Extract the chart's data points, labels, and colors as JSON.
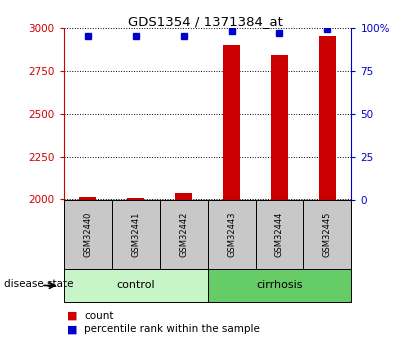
{
  "title": "GDS1354 / 1371384_at",
  "samples": [
    "GSM32440",
    "GSM32441",
    "GSM32442",
    "GSM32443",
    "GSM32444",
    "GSM32445"
  ],
  "count_values": [
    2012,
    2005,
    2035,
    2905,
    2845,
    2955
  ],
  "percentile_values": [
    95,
    95,
    95,
    98,
    97,
    99
  ],
  "ylim_left": [
    1995,
    3005
  ],
  "ylim_right": [
    0,
    100
  ],
  "yticks_left": [
    2000,
    2250,
    2500,
    2750,
    3000
  ],
  "yticks_right": [
    0,
    25,
    50,
    75,
    100
  ],
  "groups": [
    {
      "label": "control",
      "indices": [
        0,
        1,
        2
      ],
      "color": "#c8f5c8"
    },
    {
      "label": "cirrhosis",
      "indices": [
        3,
        4,
        5
      ],
      "color": "#66cc66"
    }
  ],
  "bar_color": "#cc0000",
  "dot_color": "#0000cc",
  "bar_width": 0.35,
  "left_axis_color": "#cc0000",
  "right_axis_color": "#0000cc",
  "bg_color": "#ffffff",
  "disease_state_label": "disease state"
}
